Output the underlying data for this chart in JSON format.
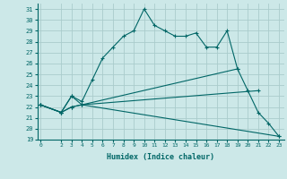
{
  "xlabel": "Humidex (Indice chaleur)",
  "background_color": "#cce8e8",
  "grid_color": "#b0d4d4",
  "line_color": "#006666",
  "series": [
    {
      "x": [
        0,
        2,
        3,
        4,
        5,
        6,
        7,
        8,
        9,
        10,
        11,
        12,
        13,
        14,
        15,
        16,
        17,
        18,
        19
      ],
      "y": [
        22.2,
        21.5,
        23.0,
        22.5,
        24.5,
        26.5,
        27.5,
        28.5,
        29.0,
        31.0,
        29.5,
        29.0,
        28.5,
        28.5,
        28.8,
        27.5,
        27.5,
        29.0,
        25.5
      ]
    },
    {
      "x": [
        0,
        2,
        3,
        4,
        19,
        20,
        21,
        22,
        23
      ],
      "y": [
        22.2,
        21.5,
        23.0,
        22.2,
        25.5,
        23.5,
        21.5,
        20.5,
        19.3
      ]
    },
    {
      "x": [
        0,
        2,
        3,
        4,
        21
      ],
      "y": [
        22.2,
        21.5,
        22.0,
        22.2,
        23.5
      ]
    },
    {
      "x": [
        0,
        2,
        3,
        4,
        23
      ],
      "y": [
        22.2,
        21.5,
        22.0,
        22.2,
        19.3
      ]
    }
  ],
  "ylim": [
    19,
    31.5
  ],
  "xlim": [
    -0.3,
    23.5
  ],
  "yticks": [
    19,
    20,
    21,
    22,
    23,
    24,
    25,
    26,
    27,
    28,
    29,
    30,
    31
  ],
  "xticks": [
    0,
    2,
    3,
    4,
    5,
    6,
    7,
    8,
    9,
    10,
    11,
    12,
    13,
    14,
    15,
    16,
    17,
    18,
    19,
    20,
    21,
    22,
    23
  ]
}
